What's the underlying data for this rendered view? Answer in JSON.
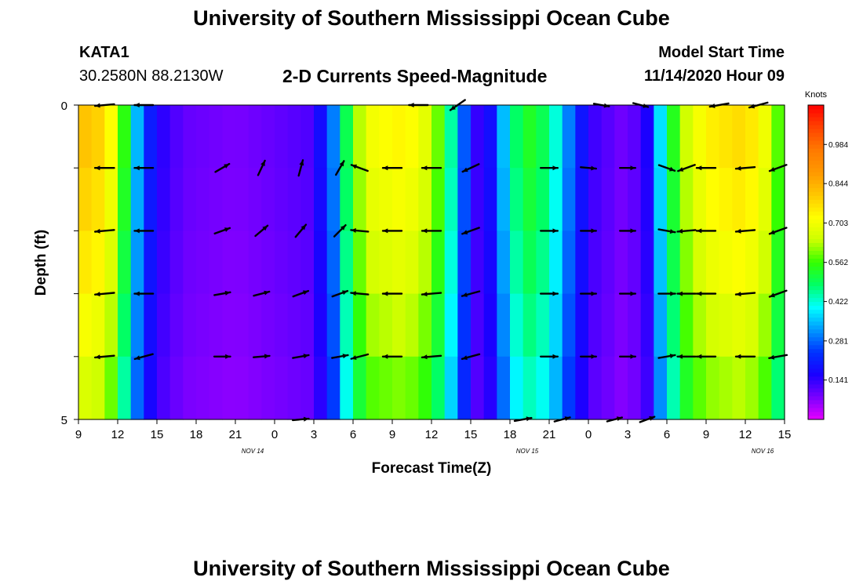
{
  "header": {
    "title": "University of Southern Mississippi Ocean Cube",
    "station": "KATA1",
    "coordinates": "30.2580N 88.2130W",
    "subtitle": "2-D Currents Speed-Magnitude",
    "model_start_label": "Model Start Time",
    "model_start_value": "11/14/2020 Hour 09"
  },
  "footer": {
    "title": "University of Southern Mississippi Ocean Cube"
  },
  "chart_data": {
    "type": "heatmap",
    "title": "2-D Currents Speed-Magnitude",
    "xlabel": "Forecast Time(Z)",
    "ylabel": "Depth (ft)",
    "x_ticks": [
      "9",
      "12",
      "15",
      "18",
      "21",
      "0",
      "3",
      "6",
      "9",
      "12",
      "15",
      "18",
      "21",
      "0",
      "3",
      "6",
      "9",
      "12",
      "15"
    ],
    "date_labels": [
      {
        "label": "NOV 14",
        "tick_index": 4
      },
      {
        "label": "NOV 15",
        "tick_index": 11
      },
      {
        "label": "NOV 16",
        "tick_index": 17
      }
    ],
    "y_range": [
      0,
      5
    ],
    "y_tick_labels": {
      "top": "0",
      "bottom": "5"
    },
    "depth_rows": 5,
    "hours_total": 54,
    "colorbar": {
      "unit_label": "Knots",
      "ticks": [
        "0.984",
        "0.844",
        "0.703",
        "0.562",
        "0.422",
        "0.281",
        "0.141"
      ],
      "tick_values": [
        0.984,
        0.844,
        0.703,
        0.562,
        0.422,
        0.281,
        0.141
      ],
      "range": [
        0.0,
        1.125
      ],
      "colors": [
        "#e600ff",
        "#7a00ff",
        "#1a00ff",
        "#0033ff",
        "#0099ff",
        "#00ffff",
        "#00ff66",
        "#33ff00",
        "#ccff00",
        "#ffff00",
        "#ffc800",
        "#ff9900",
        "#ff7a00",
        "#ff4400",
        "#ff0000"
      ]
    },
    "speed_profile": [
      {
        "hour": 0,
        "speed": 0.82
      },
      {
        "hour": 2,
        "speed": 0.78
      },
      {
        "hour": 3,
        "speed": 0.66
      },
      {
        "hour": 4,
        "speed": 0.44
      },
      {
        "hour": 5,
        "speed": 0.25
      },
      {
        "hour": 6,
        "speed": 0.16
      },
      {
        "hour": 8,
        "speed": 0.1
      },
      {
        "hour": 12,
        "speed": 0.08
      },
      {
        "hour": 18,
        "speed": 0.12
      },
      {
        "hour": 19.5,
        "speed": 0.3
      },
      {
        "hour": 20.5,
        "speed": 0.5
      },
      {
        "hour": 22,
        "speed": 0.7
      },
      {
        "hour": 25,
        "speed": 0.74
      },
      {
        "hour": 27,
        "speed": 0.66
      },
      {
        "hour": 28.5,
        "speed": 0.45
      },
      {
        "hour": 30,
        "speed": 0.18
      },
      {
        "hour": 31,
        "speed": 0.1
      },
      {
        "hour": 32.5,
        "speed": 0.35
      },
      {
        "hour": 34,
        "speed": 0.55
      },
      {
        "hour": 36,
        "speed": 0.48
      },
      {
        "hour": 37.5,
        "speed": 0.3
      },
      {
        "hour": 39,
        "speed": 0.14
      },
      {
        "hour": 42,
        "speed": 0.08
      },
      {
        "hour": 43.5,
        "speed": 0.16
      },
      {
        "hour": 44.5,
        "speed": 0.38
      },
      {
        "hour": 46,
        "speed": 0.62
      },
      {
        "hour": 48,
        "speed": 0.74
      },
      {
        "hour": 51,
        "speed": 0.78
      },
      {
        "hour": 52.5,
        "speed": 0.7
      },
      {
        "hour": 54,
        "speed": 0.52
      }
    ],
    "depth_factor": [
      1.0,
      0.97,
      0.93,
      0.88,
      0.82,
      0.68
    ],
    "arrows": [
      {
        "depth_row": 0,
        "hour": 2,
        "dir_deg": 185,
        "speed": 0.8
      },
      {
        "depth_row": 0,
        "hour": 5,
        "dir_deg": 180,
        "speed": 0.7
      },
      {
        "depth_row": 0,
        "hour": 26,
        "dir_deg": 180,
        "speed": 0.75
      },
      {
        "depth_row": 0,
        "hour": 29,
        "dir_deg": 215,
        "speed": 0.6
      },
      {
        "depth_row": 0,
        "hour": 40,
        "dir_deg": 350,
        "speed": 0.2
      },
      {
        "depth_row": 0,
        "hour": 43,
        "dir_deg": 345,
        "speed": 0.2
      },
      {
        "depth_row": 0,
        "hour": 49,
        "dir_deg": 190,
        "speed": 0.75
      },
      {
        "depth_row": 0,
        "hour": 52,
        "dir_deg": 195,
        "speed": 0.75
      },
      {
        "depth_row": 1,
        "hour": 2,
        "dir_deg": 180,
        "speed": 0.8
      },
      {
        "depth_row": 1,
        "hour": 5,
        "dir_deg": 180,
        "speed": 0.7
      },
      {
        "depth_row": 1,
        "hour": 11,
        "dir_deg": 30,
        "speed": 0.3
      },
      {
        "depth_row": 1,
        "hour": 14,
        "dir_deg": 65,
        "speed": 0.3
      },
      {
        "depth_row": 1,
        "hour": 17,
        "dir_deg": 75,
        "speed": 0.3
      },
      {
        "depth_row": 1,
        "hour": 20,
        "dir_deg": 60,
        "speed": 0.3
      },
      {
        "depth_row": 1,
        "hour": 21.5,
        "dir_deg": 160,
        "speed": 0.5
      },
      {
        "depth_row": 1,
        "hour": 24,
        "dir_deg": 180,
        "speed": 0.75
      },
      {
        "depth_row": 1,
        "hour": 27,
        "dir_deg": 180,
        "speed": 0.75
      },
      {
        "depth_row": 1,
        "hour": 30,
        "dir_deg": 205,
        "speed": 0.6
      },
      {
        "depth_row": 1,
        "hour": 36,
        "dir_deg": 0,
        "speed": 0.45
      },
      {
        "depth_row": 1,
        "hour": 39,
        "dir_deg": 355,
        "speed": 0.2
      },
      {
        "depth_row": 1,
        "hour": 42,
        "dir_deg": 0,
        "speed": 0.2
      },
      {
        "depth_row": 1,
        "hour": 45,
        "dir_deg": 340,
        "speed": 0.4
      },
      {
        "depth_row": 1,
        "hour": 46.5,
        "dir_deg": 200,
        "speed": 0.6
      },
      {
        "depth_row": 1,
        "hour": 48,
        "dir_deg": 180,
        "speed": 0.75
      },
      {
        "depth_row": 1,
        "hour": 51,
        "dir_deg": 185,
        "speed": 0.75
      },
      {
        "depth_row": 1,
        "hour": 53.5,
        "dir_deg": 200,
        "speed": 0.6
      },
      {
        "depth_row": 2,
        "hour": 2,
        "dir_deg": 185,
        "speed": 0.8
      },
      {
        "depth_row": 2,
        "hour": 5,
        "dir_deg": 180,
        "speed": 0.7
      },
      {
        "depth_row": 2,
        "hour": 11,
        "dir_deg": 20,
        "speed": 0.3
      },
      {
        "depth_row": 2,
        "hour": 14,
        "dir_deg": 40,
        "speed": 0.3
      },
      {
        "depth_row": 2,
        "hour": 17,
        "dir_deg": 50,
        "speed": 0.3
      },
      {
        "depth_row": 2,
        "hour": 20,
        "dir_deg": 45,
        "speed": 0.3
      },
      {
        "depth_row": 2,
        "hour": 21.5,
        "dir_deg": 175,
        "speed": 0.5
      },
      {
        "depth_row": 2,
        "hour": 24,
        "dir_deg": 180,
        "speed": 0.75
      },
      {
        "depth_row": 2,
        "hour": 27,
        "dir_deg": 180,
        "speed": 0.75
      },
      {
        "depth_row": 2,
        "hour": 30,
        "dir_deg": 200,
        "speed": 0.6
      },
      {
        "depth_row": 2,
        "hour": 36,
        "dir_deg": 0,
        "speed": 0.45
      },
      {
        "depth_row": 2,
        "hour": 39,
        "dir_deg": 0,
        "speed": 0.2
      },
      {
        "depth_row": 2,
        "hour": 42,
        "dir_deg": 0,
        "speed": 0.2
      },
      {
        "depth_row": 2,
        "hour": 45,
        "dir_deg": 350,
        "speed": 0.4
      },
      {
        "depth_row": 2,
        "hour": 46.5,
        "dir_deg": 185,
        "speed": 0.6
      },
      {
        "depth_row": 2,
        "hour": 48,
        "dir_deg": 180,
        "speed": 0.75
      },
      {
        "depth_row": 2,
        "hour": 51,
        "dir_deg": 185,
        "speed": 0.75
      },
      {
        "depth_row": 2,
        "hour": 53.5,
        "dir_deg": 200,
        "speed": 0.6
      },
      {
        "depth_row": 3,
        "hour": 2,
        "dir_deg": 185,
        "speed": 0.8
      },
      {
        "depth_row": 3,
        "hour": 5,
        "dir_deg": 180,
        "speed": 0.7
      },
      {
        "depth_row": 3,
        "hour": 11,
        "dir_deg": 10,
        "speed": 0.3
      },
      {
        "depth_row": 3,
        "hour": 14,
        "dir_deg": 15,
        "speed": 0.3
      },
      {
        "depth_row": 3,
        "hour": 17,
        "dir_deg": 20,
        "speed": 0.3
      },
      {
        "depth_row": 3,
        "hour": 20,
        "dir_deg": 20,
        "speed": 0.3
      },
      {
        "depth_row": 3,
        "hour": 21.5,
        "dir_deg": 175,
        "speed": 0.5
      },
      {
        "depth_row": 3,
        "hour": 24,
        "dir_deg": 180,
        "speed": 0.75
      },
      {
        "depth_row": 3,
        "hour": 27,
        "dir_deg": 185,
        "speed": 0.75
      },
      {
        "depth_row": 3,
        "hour": 30,
        "dir_deg": 195,
        "speed": 0.6
      },
      {
        "depth_row": 3,
        "hour": 36,
        "dir_deg": 0,
        "speed": 0.45
      },
      {
        "depth_row": 3,
        "hour": 39,
        "dir_deg": 0,
        "speed": 0.2
      },
      {
        "depth_row": 3,
        "hour": 42,
        "dir_deg": 0,
        "speed": 0.2
      },
      {
        "depth_row": 3,
        "hour": 45,
        "dir_deg": 0,
        "speed": 0.4
      },
      {
        "depth_row": 3,
        "hour": 46.5,
        "dir_deg": 180,
        "speed": 0.6
      },
      {
        "depth_row": 3,
        "hour": 48,
        "dir_deg": 180,
        "speed": 0.75
      },
      {
        "depth_row": 3,
        "hour": 51,
        "dir_deg": 185,
        "speed": 0.75
      },
      {
        "depth_row": 3,
        "hour": 53.5,
        "dir_deg": 200,
        "speed": 0.6
      },
      {
        "depth_row": 4,
        "hour": 2,
        "dir_deg": 185,
        "speed": 0.8
      },
      {
        "depth_row": 4,
        "hour": 5,
        "dir_deg": 195,
        "speed": 0.7
      },
      {
        "depth_row": 4,
        "hour": 11,
        "dir_deg": 0,
        "speed": 0.3
      },
      {
        "depth_row": 4,
        "hour": 14,
        "dir_deg": 5,
        "speed": 0.3
      },
      {
        "depth_row": 4,
        "hour": 17,
        "dir_deg": 10,
        "speed": 0.3
      },
      {
        "depth_row": 4,
        "hour": 20,
        "dir_deg": 10,
        "speed": 0.3
      },
      {
        "depth_row": 4,
        "hour": 21.5,
        "dir_deg": 195,
        "speed": 0.5
      },
      {
        "depth_row": 4,
        "hour": 24,
        "dir_deg": 180,
        "speed": 0.75
      },
      {
        "depth_row": 4,
        "hour": 27,
        "dir_deg": 185,
        "speed": 0.75
      },
      {
        "depth_row": 4,
        "hour": 30,
        "dir_deg": 195,
        "speed": 0.6
      },
      {
        "depth_row": 4,
        "hour": 36,
        "dir_deg": 0,
        "speed": 0.45
      },
      {
        "depth_row": 4,
        "hour": 39,
        "dir_deg": 0,
        "speed": 0.2
      },
      {
        "depth_row": 4,
        "hour": 42,
        "dir_deg": 0,
        "speed": 0.2
      },
      {
        "depth_row": 4,
        "hour": 45,
        "dir_deg": 10,
        "speed": 0.4
      },
      {
        "depth_row": 4,
        "hour": 46.5,
        "dir_deg": 180,
        "speed": 0.6
      },
      {
        "depth_row": 4,
        "hour": 48,
        "dir_deg": 180,
        "speed": 0.75
      },
      {
        "depth_row": 4,
        "hour": 51,
        "dir_deg": 180,
        "speed": 0.75
      },
      {
        "depth_row": 4,
        "hour": 53.5,
        "dir_deg": 190,
        "speed": 0.6
      },
      {
        "depth_row": 5,
        "hour": 17,
        "dir_deg": 5,
        "speed": 0.3
      },
      {
        "depth_row": 5,
        "hour": 34,
        "dir_deg": 10,
        "speed": 0.45
      },
      {
        "depth_row": 5,
        "hour": 37,
        "dir_deg": 15,
        "speed": 0.3
      },
      {
        "depth_row": 5,
        "hour": 41,
        "dir_deg": 15,
        "speed": 0.2
      },
      {
        "depth_row": 5,
        "hour": 43.5,
        "dir_deg": 20,
        "speed": 0.2
      }
    ]
  }
}
